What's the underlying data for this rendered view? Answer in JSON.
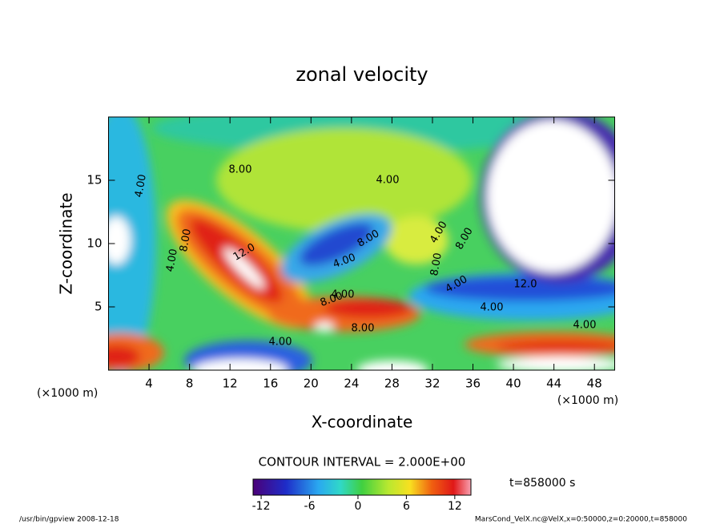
{
  "chart_data": {
    "type": "contour",
    "title": "zonal velocity",
    "xlabel": "X-coordinate",
    "ylabel": "Z-coordinate",
    "x_unit": "(×1000 m)",
    "xlim": [
      0,
      50
    ],
    "ylim": [
      0,
      20
    ],
    "xticks": [
      4,
      8,
      12,
      16,
      20,
      24,
      28,
      32,
      36,
      40,
      44,
      48
    ],
    "yticks": [
      5,
      10,
      15
    ],
    "contour_interval": "CONTOUR INTERVAL = 2.000E+00",
    "colorbar": {
      "clim": [
        -13,
        14
      ],
      "ticks": [
        -12,
        -6,
        0,
        6,
        12
      ]
    },
    "time_label": "t=858000 s",
    "annotations": [
      "4.00",
      "8.00",
      "4.00",
      "8.00",
      "12.0",
      "4.00",
      "8.00",
      "4.00",
      "8.00",
      "4.00",
      "4.00",
      "8.00",
      "8.00",
      "4.00",
      "12.0",
      "4.00",
      "4.00",
      "4.00",
      "8.00"
    ],
    "footer_left": "/usr/bin/gpview  2008-12-18",
    "footer_right": "MarsCond_VelX.nc@VelX,x=0:50000,z=0:20000,t=858000"
  }
}
